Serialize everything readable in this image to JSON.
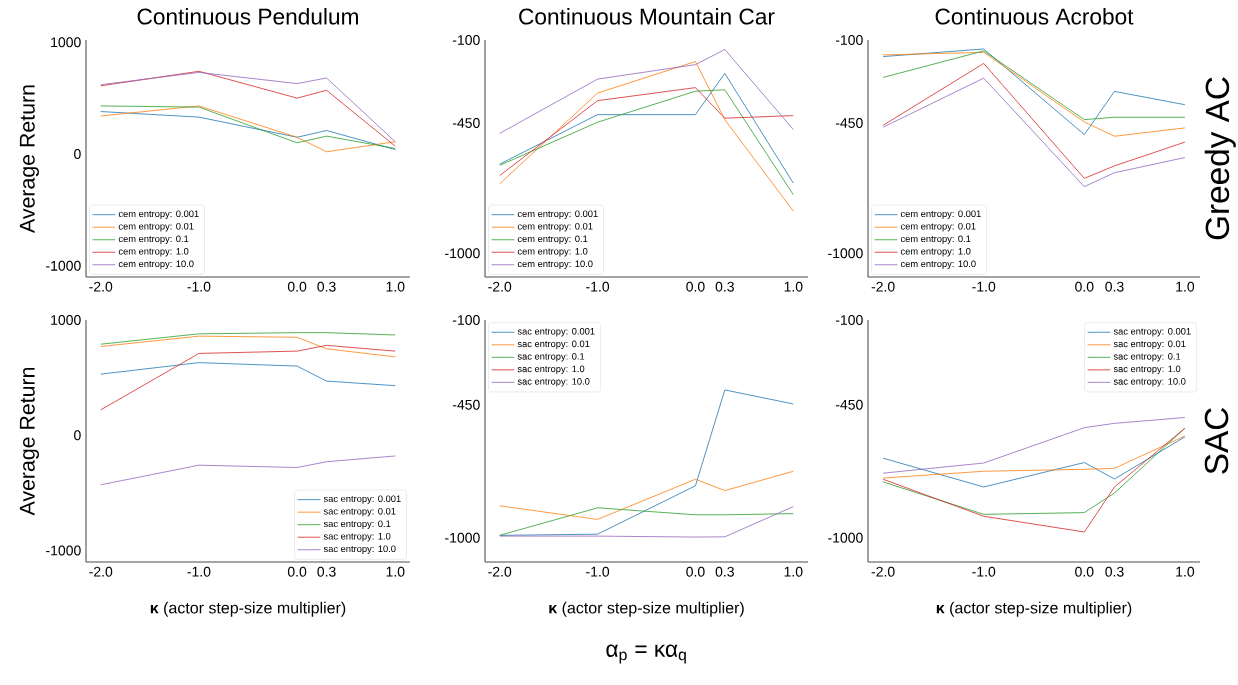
{
  "chart_data": [
    {
      "type": "line",
      "title": "Continuous Pendulum",
      "ylabel": "Average Return",
      "x": [
        -2,
        -1,
        0,
        0.3,
        1
      ],
      "xlim": [
        -2.15,
        1.15
      ],
      "xticks": [
        {
          "value": -2,
          "label": "-2.0"
        },
        {
          "value": -1,
          "label": "-1.0"
        },
        {
          "value": 0,
          "label": "0.0"
        },
        {
          "value": 0.3,
          "label": "0.3"
        },
        {
          "value": 1,
          "label": "1.0"
        }
      ],
      "ylim": [
        -1100,
        1020
      ],
      "yticks": [
        -1000,
        0,
        1000
      ],
      "legend": "bottom left",
      "series": [
        {
          "name": "cem entropy: 0.001",
          "color": "#1f77b4",
          "values": [
            380,
            330,
            150,
            210,
            40
          ]
        },
        {
          "name": "cem entropy: 0.01",
          "color": "#ff7f0e",
          "values": [
            340,
            430,
            150,
            20,
            110
          ]
        },
        {
          "name": "cem entropy: 0.1",
          "color": "#2ca02c",
          "values": [
            430,
            420,
            100,
            160,
            50
          ]
        },
        {
          "name": "cem entropy: 1.0",
          "color": "#d62728",
          "values": [
            610,
            740,
            500,
            570,
            70
          ]
        },
        {
          "name": "cem entropy: 10.0",
          "color": "#9467bd",
          "values": [
            620,
            730,
            630,
            680,
            110
          ]
        }
      ]
    },
    {
      "type": "line",
      "title": "Continuous Mountain Car",
      "x": [
        -2,
        -1,
        0,
        0.3,
        1
      ],
      "xlim": [
        -2.15,
        1.15
      ],
      "xticks": [
        {
          "value": -2,
          "label": "-2.0"
        },
        {
          "value": -1,
          "label": "-1.0"
        },
        {
          "value": 0,
          "label": "0.0"
        },
        {
          "value": 0.3,
          "label": "0.3"
        },
        {
          "value": 1,
          "label": "1.0"
        }
      ],
      "ylim": [
        -1100,
        -100
      ],
      "yticks": [
        -1000,
        -450,
        -100
      ],
      "legend": "bottom left",
      "series": [
        {
          "name": "cem entropy: 0.001",
          "color": "#1f77b4",
          "values": [
            -624,
            -415,
            -415,
            -241,
            -704
          ]
        },
        {
          "name": "cem entropy: 0.01",
          "color": "#ff7f0e",
          "values": [
            -707,
            -324,
            -191,
            -436,
            -822
          ]
        },
        {
          "name": "cem entropy: 0.1",
          "color": "#2ca02c",
          "values": [
            -629,
            -447,
            -316,
            -310,
            -753
          ]
        },
        {
          "name": "cem entropy: 1.0",
          "color": "#d62728",
          "values": [
            -672,
            -356,
            -301,
            -430,
            -419
          ]
        },
        {
          "name": "cem entropy: 10.0",
          "color": "#9467bd",
          "values": [
            -494,
            -265,
            -204,
            -140,
            -478
          ]
        }
      ]
    },
    {
      "type": "line",
      "title": "Continuous Acrobot",
      "y2label": "Greedy AC",
      "x": [
        -2,
        -1,
        0,
        0.3,
        1
      ],
      "xlim": [
        -2.15,
        1.15
      ],
      "xticks": [
        {
          "value": -2,
          "label": "-2.0"
        },
        {
          "value": -1,
          "label": "-1.0"
        },
        {
          "value": 0,
          "label": "0.0"
        },
        {
          "value": 0.3,
          "label": "0.3"
        },
        {
          "value": 1,
          "label": "1.0"
        }
      ],
      "ylim": [
        -1100,
        -100
      ],
      "yticks": [
        -1000,
        -450,
        -100
      ],
      "legend": "bottom left",
      "series": [
        {
          "name": "cem entropy: 0.001",
          "color": "#1f77b4",
          "values": [
            -170,
            -138,
            -499,
            -317,
            -373
          ]
        },
        {
          "name": "cem entropy: 0.01",
          "color": "#ff7f0e",
          "values": [
            -163,
            -152,
            -446,
            -506,
            -471
          ]
        },
        {
          "name": "cem entropy: 0.1",
          "color": "#2ca02c",
          "values": [
            -258,
            -146,
            -436,
            -426,
            -426
          ]
        },
        {
          "name": "cem entropy: 1.0",
          "color": "#d62728",
          "values": [
            -460,
            -199,
            -684,
            -631,
            -531
          ]
        },
        {
          "name": "cem entropy: 10.0",
          "color": "#9467bd",
          "values": [
            -468,
            -261,
            -719,
            -660,
            -596
          ]
        }
      ]
    },
    {
      "type": "line",
      "ylabel": "Average Return",
      "xlabel": "**κ** (actor step-size multiplier)",
      "x": [
        -2,
        -1,
        0,
        0.3,
        1
      ],
      "xlim": [
        -2.15,
        1.15
      ],
      "xticks": [
        {
          "value": -2,
          "label": "-2.0"
        },
        {
          "value": -1,
          "label": "-1.0"
        },
        {
          "value": 0,
          "label": "0.0"
        },
        {
          "value": 0.3,
          "label": "0.3"
        },
        {
          "value": 1,
          "label": "1.0"
        }
      ],
      "ylim": [
        -1100,
        1000
      ],
      "yticks": [
        -1000,
        0,
        1000
      ],
      "legend": "bottom right",
      "series": [
        {
          "name": "sac entropy: 0.001",
          "color": "#1f77b4",
          "values": [
            530,
            630,
            600,
            470,
            430
          ]
        },
        {
          "name": "sac entropy: 0.01",
          "color": "#ff7f0e",
          "values": [
            770,
            860,
            850,
            750,
            680
          ]
        },
        {
          "name": "sac entropy: 0.1",
          "color": "#2ca02c",
          "values": [
            790,
            880,
            890,
            890,
            870
          ]
        },
        {
          "name": "sac entropy: 1.0",
          "color": "#d62728",
          "values": [
            220,
            710,
            730,
            780,
            730
          ]
        },
        {
          "name": "sac entropy: 10.0",
          "color": "#9467bd",
          "values": [
            -430,
            -260,
            -280,
            -230,
            -180
          ]
        }
      ]
    },
    {
      "type": "line",
      "xlabel": "**κ** (actor step-size multiplier)",
      "annotations": [
        "α$_{p}$ = κα$_{q}$"
      ],
      "x": [
        -2,
        -1,
        0,
        0.3,
        1
      ],
      "xlim": [
        -2.15,
        1.15
      ],
      "xticks": [
        {
          "value": -2,
          "label": "-2.0"
        },
        {
          "value": -1,
          "label": "-1.0"
        },
        {
          "value": 0,
          "label": "0.0"
        },
        {
          "value": 0.3,
          "label": "0.3"
        },
        {
          "value": 1,
          "label": "1.0"
        }
      ],
      "ylim": [
        -1100,
        -100
      ],
      "yticks": [
        -1000,
        -450,
        -100
      ],
      "legend": "top left",
      "series": [
        {
          "name": "sac entropy: 0.001",
          "color": "#1f77b4",
          "values": [
            -990,
            -985,
            -785,
            -389,
            -447
          ]
        },
        {
          "name": "sac entropy: 0.01",
          "color": "#ff7f0e",
          "values": [
            -868,
            -924,
            -758,
            -805,
            -725
          ]
        },
        {
          "name": "sac entropy: 0.1",
          "color": "#2ca02c",
          "values": [
            -990,
            -876,
            -905,
            -905,
            -900
          ]
        },
        {
          "name": "sac entropy: 1.0",
          "color": "#d62728",
          "values": [
            null,
            null,
            null,
            null,
            null
          ]
        },
        {
          "name": "sac entropy: 10.0",
          "color": "#9467bd",
          "values": [
            -993,
            -993,
            -997,
            -996,
            -871
          ]
        }
      ]
    },
    {
      "type": "line",
      "xlabel": "**κ** (actor step-size multiplier)",
      "y2label": "SAC",
      "x": [
        -2,
        -1,
        0,
        0.3,
        1
      ],
      "xlim": [
        -2.15,
        1.15
      ],
      "xticks": [
        {
          "value": -2,
          "label": "-2.0"
        },
        {
          "value": -1,
          "label": "-1.0"
        },
        {
          "value": 0,
          "label": "0.0"
        },
        {
          "value": 0.3,
          "label": "0.3"
        },
        {
          "value": 1,
          "label": "1.0"
        }
      ],
      "ylim": [
        -1100,
        -100
      ],
      "yticks": [
        -1000,
        -450,
        -100
      ],
      "legend": "top right",
      "series": [
        {
          "name": "sac entropy: 0.001",
          "color": "#1f77b4",
          "values": [
            -671,
            -790,
            -689,
            -757,
            -583
          ]
        },
        {
          "name": "sac entropy: 0.01",
          "color": "#ff7f0e",
          "values": [
            -753,
            -725,
            -717,
            -713,
            -579
          ]
        },
        {
          "name": "sac entropy: 0.1",
          "color": "#2ca02c",
          "values": [
            -769,
            -903,
            -896,
            -815,
            -547
          ]
        },
        {
          "name": "sac entropy: 1.0",
          "color": "#d62728",
          "values": [
            -758,
            -911,
            -976,
            -790,
            -547
          ]
        },
        {
          "name": "sac entropy: 10.0",
          "color": "#9467bd",
          "values": [
            -733,
            -691,
            -545,
            -527,
            -503
          ]
        }
      ]
    }
  ]
}
